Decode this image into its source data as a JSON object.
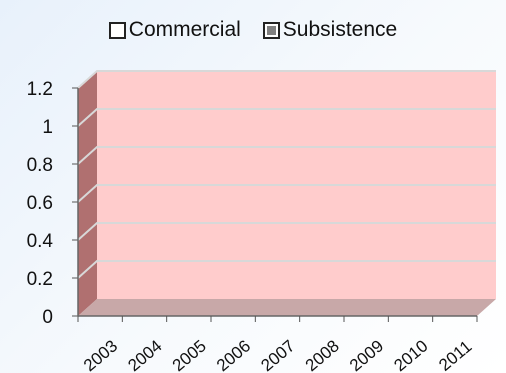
{
  "chart_data": {
    "type": "bar",
    "title": "",
    "xlabel": "",
    "ylabel": "",
    "categories": [
      "2003",
      "2004",
      "2005",
      "2006",
      "2007",
      "2008",
      "2009",
      "2010",
      "2011"
    ],
    "series": [
      {
        "name": "Commercial",
        "values": [
          0,
          0,
          0,
          0,
          0,
          0,
          0,
          0,
          0
        ],
        "color": "#ffffff"
      },
      {
        "name": "Subsistence",
        "values": [
          0,
          0,
          0,
          0,
          0,
          0,
          0,
          0,
          0
        ],
        "color": "#808080"
      }
    ],
    "ylim": [
      0,
      1.2
    ],
    "yticks": [
      "0",
      "0.2",
      "0.4",
      "0.6",
      "0.8",
      "1",
      "1.2"
    ],
    "legend_position": "top",
    "grid": true,
    "style": "3d",
    "colors": {
      "plot_background": "#ffcccc",
      "wall_side": "#b07070",
      "floor": "#c8a8a8",
      "gridline": "#d8d8d8"
    }
  }
}
